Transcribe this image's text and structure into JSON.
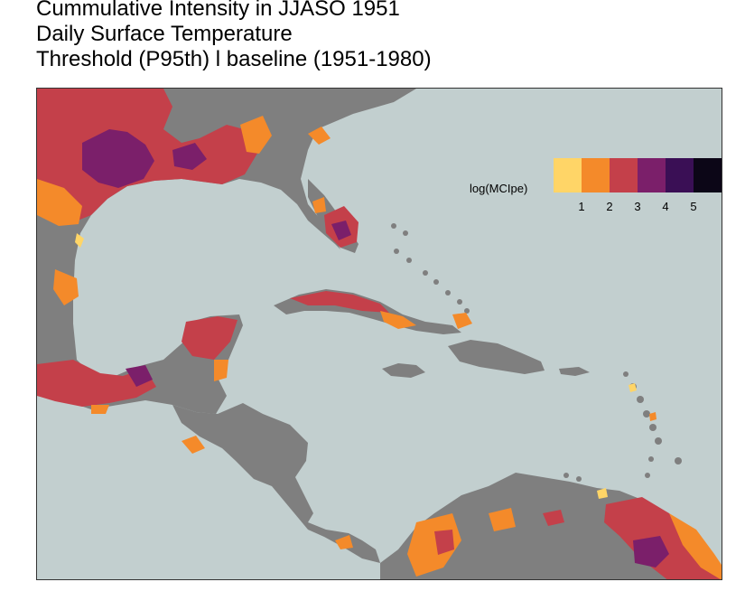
{
  "title": {
    "lines": [
      "Cummulative Intensity in JJASO 1951",
      "Daily Surface Temperature",
      "Threshold (P95th) l baseline (1951-1980)"
    ]
  },
  "legend": {
    "title": "log(MCIpe)",
    "colors": [
      "#ffd567",
      "#f48a2a",
      "#c4404a",
      "#7b1f6a",
      "#3a0f55",
      "#0c0617"
    ],
    "ticks": [
      "1",
      "2",
      "3",
      "4",
      "5"
    ]
  },
  "map": {
    "ocean_color": "#c2cfcf",
    "land_color": "#7f7f7f"
  }
}
